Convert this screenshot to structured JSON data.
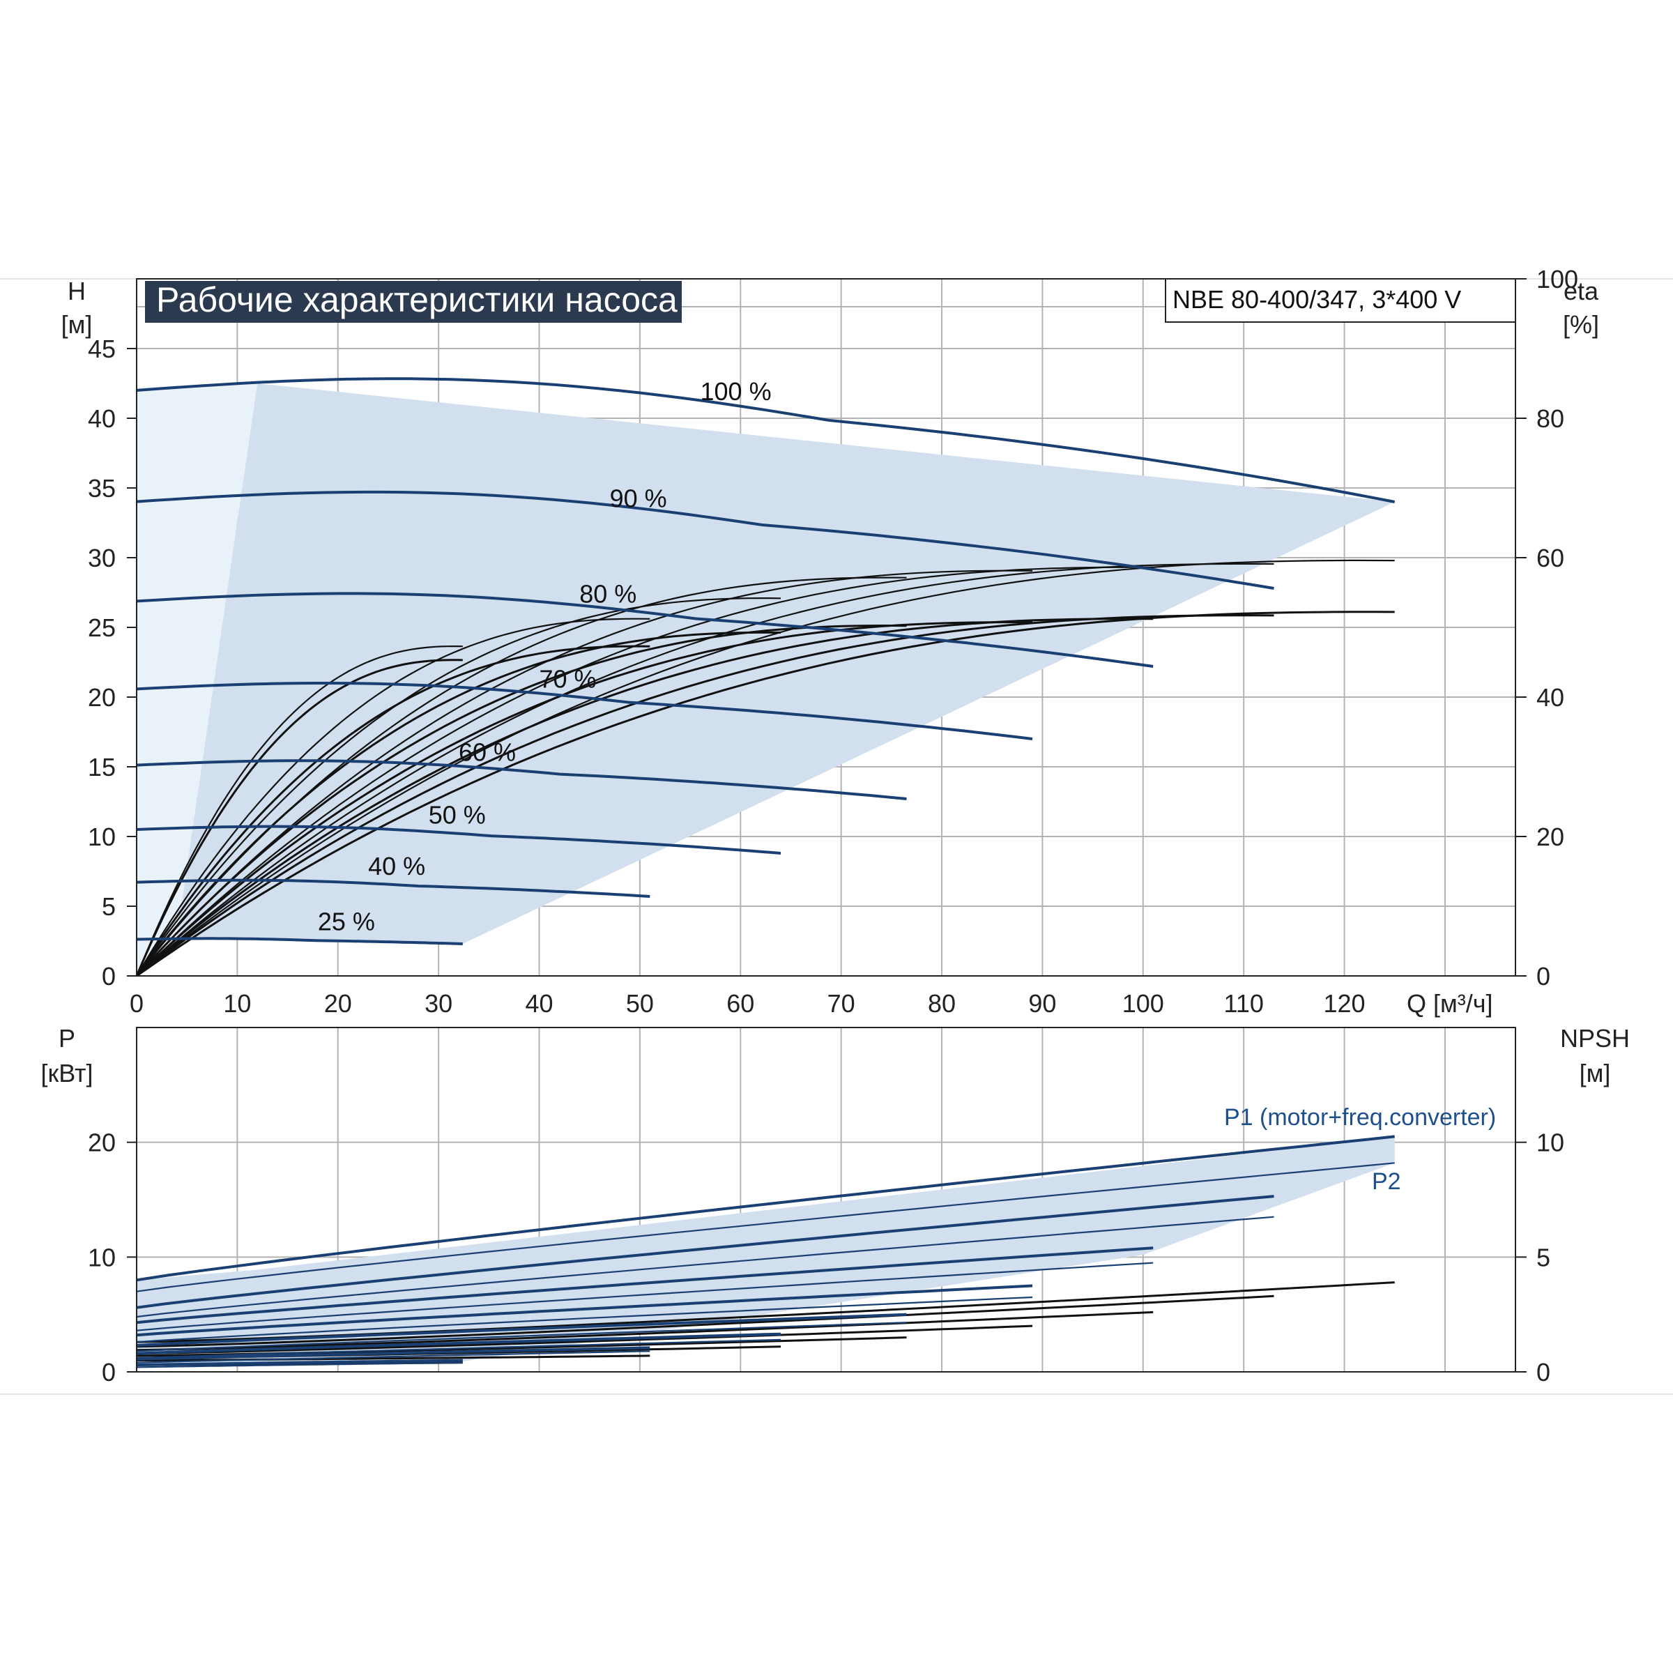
{
  "chart_data": [
    {
      "type": "line",
      "title": "Рабочие характеристики насоса",
      "model": "NBE 80-400/347, 3*400 V",
      "xlabel": "Q [м³/ч]",
      "ylabel_left": [
        "H",
        "[м]"
      ],
      "ylabel_right": [
        "eta",
        "[%]"
      ],
      "xlim": [
        0,
        137
      ],
      "ylim_left": [
        0,
        50
      ],
      "ylim_right": [
        0,
        100
      ],
      "x_ticks": [
        0,
        10,
        20,
        30,
        40,
        50,
        60,
        70,
        80,
        90,
        100,
        110,
        120
      ],
      "y_ticks_left": [
        0,
        5,
        10,
        15,
        20,
        25,
        30,
        35,
        40,
        45
      ],
      "y_ticks_right": [
        0,
        20,
        40,
        60,
        80,
        100
      ],
      "grid": true,
      "operating_area": [
        [
          12,
          42.5
        ],
        [
          125,
          34
        ],
        [
          32.4,
          2.3
        ],
        [
          4,
          2.8
        ]
      ],
      "speed_curves": [
        {
          "label": "100 %",
          "qmax": 125,
          "hmax": 34.0
        },
        {
          "label": "90 %",
          "qmax": 113,
          "hmax": 27.8
        },
        {
          "label": "80 %",
          "qmax": 101,
          "hmax": 22.2
        },
        {
          "label": "70 %",
          "qmax": 89,
          "hmax": 17.0
        },
        {
          "label": "60 %",
          "qmax": 76.5,
          "hmax": 12.7
        },
        {
          "label": "50 %",
          "qmax": 64,
          "hmax": 8.8
        },
        {
          "label": "40 %",
          "qmax": 51,
          "hmax": 5.7
        },
        {
          "label": "25 %",
          "qmax": 32.4,
          "hmax": 2.3
        }
      ],
      "efficiency_curves_percent": [
        {
          "qmax": 125,
          "peak": 60.5
        },
        {
          "qmax": 113,
          "peak": 60.0
        },
        {
          "qmax": 101,
          "peak": 59.5
        },
        {
          "qmax": 89,
          "peak": 59.0
        },
        {
          "qmax": 76.5,
          "peak": 58.0
        },
        {
          "qmax": 64,
          "peak": 55.0
        },
        {
          "qmax": 51,
          "peak": 52.0
        },
        {
          "qmax": 32.4,
          "peak": 48.0
        },
        {
          "qmax": 125,
          "peak": 53.0
        },
        {
          "qmax": 113,
          "peak": 52.5
        },
        {
          "qmax": 101,
          "peak": 52.0
        },
        {
          "qmax": 89,
          "peak": 51.5
        },
        {
          "qmax": 76.5,
          "peak": 51.0
        },
        {
          "qmax": 64,
          "peak": 50.0
        },
        {
          "qmax": 51,
          "peak": 48.0
        },
        {
          "qmax": 32.4,
          "peak": 46.0
        }
      ]
    },
    {
      "type": "line",
      "xlim": [
        0,
        137
      ],
      "ylim_left": [
        0,
        30
      ],
      "ylim_right": [
        0,
        15
      ],
      "ylabel_left": [
        "P",
        "[кВт]"
      ],
      "ylabel_right": [
        "NPSH",
        "[м]"
      ],
      "y_ticks_left": [
        0,
        10,
        20
      ],
      "y_ticks_right": [
        0,
        5,
        10
      ],
      "grid": true,
      "series_labels": [
        "P1 (motor+freq.converter)",
        "P2"
      ],
      "operating_area": [
        [
          0,
          8.0
        ],
        [
          12,
          8.9
        ],
        [
          125,
          20.5
        ],
        [
          125,
          18.2
        ],
        [
          100,
          10.2
        ],
        [
          32.4,
          0.9
        ],
        [
          0,
          0.5
        ]
      ],
      "p1_curves": [
        {
          "qmax": 125,
          "p0": 8.0,
          "pend": 20.5
        },
        {
          "qmax": 113,
          "p0": 5.6,
          "pend": 15.3
        },
        {
          "qmax": 101,
          "p0": 4.3,
          "pend": 10.8
        },
        {
          "qmax": 89,
          "p0": 3.2,
          "pend": 7.5
        },
        {
          "qmax": 76.5,
          "p0": 2.3,
          "pend": 5.0
        },
        {
          "qmax": 64,
          "p0": 1.6,
          "pend": 3.3
        },
        {
          "qmax": 51,
          "p0": 1.1,
          "pend": 2.1
        },
        {
          "qmax": 32.4,
          "p0": 0.6,
          "pend": 1.0
        }
      ],
      "p2_curves": [
        {
          "qmax": 125,
          "p0": 7.0,
          "pend": 18.2
        },
        {
          "qmax": 113,
          "p0": 4.8,
          "pend": 13.5
        },
        {
          "qmax": 101,
          "p0": 3.6,
          "pend": 9.5
        },
        {
          "qmax": 89,
          "p0": 2.6,
          "pend": 6.5
        },
        {
          "qmax": 76.5,
          "p0": 1.8,
          "pend": 4.3
        },
        {
          "qmax": 64,
          "p0": 1.2,
          "pend": 2.8
        },
        {
          "qmax": 51,
          "p0": 0.8,
          "pend": 1.8
        },
        {
          "qmax": 32.4,
          "p0": 0.4,
          "pend": 0.8
        }
      ],
      "npsh_curves": [
        {
          "qmax": 125,
          "n0": 1.3,
          "nend": 3.9
        },
        {
          "qmax": 113,
          "n0": 1.1,
          "nend": 3.3
        },
        {
          "qmax": 101,
          "n0": 0.95,
          "nend": 2.6
        },
        {
          "qmax": 89,
          "n0": 0.8,
          "nend": 2.0
        },
        {
          "qmax": 76.5,
          "n0": 0.7,
          "nend": 1.5
        },
        {
          "qmax": 64,
          "n0": 0.6,
          "nend": 1.1
        },
        {
          "qmax": 51,
          "n0": 0.5,
          "nend": 0.7
        },
        {
          "qmax": 32.4,
          "n0": 0.3,
          "nend": 0.4
        }
      ]
    }
  ]
}
